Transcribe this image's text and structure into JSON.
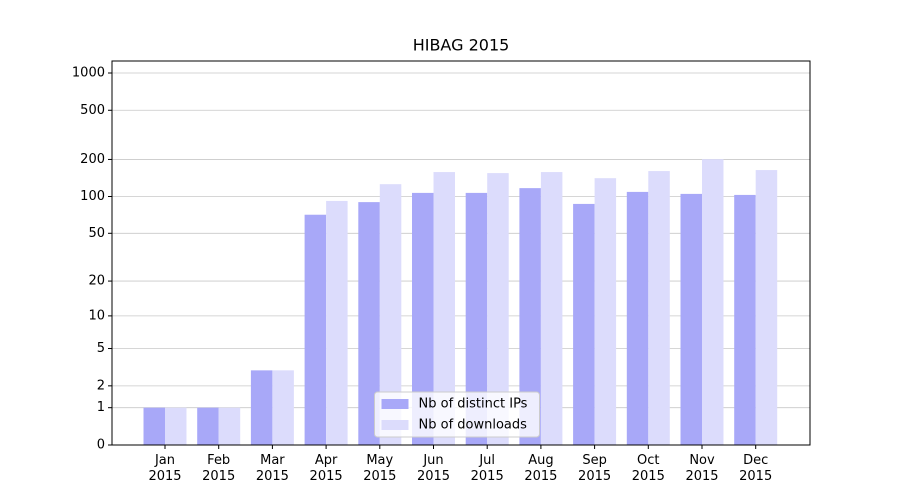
{
  "chart_data": {
    "type": "bar",
    "title": "HIBAG 2015",
    "categories": [
      "Jan\n2015",
      "Feb\n2015",
      "Mar\n2015",
      "Apr\n2015",
      "May\n2015",
      "Jun\n2015",
      "Jul\n2015",
      "Aug\n2015",
      "Sep\n2015",
      "Oct\n2015",
      "Nov\n2015",
      "Dec\n2015"
    ],
    "series": [
      {
        "name": "Nb of distinct IPs",
        "color": "#a8a8f8",
        "values": [
          1,
          1,
          3,
          71,
          90,
          107,
          107,
          117,
          87,
          109,
          105,
          103
        ]
      },
      {
        "name": "Nb of downloads",
        "color": "#dcdcfc",
        "values": [
          1,
          1,
          3,
          92,
          126,
          158,
          155,
          158,
          141,
          161,
          201,
          164
        ]
      }
    ],
    "yscale": "log1p",
    "ylim": [
      0,
      1250
    ],
    "yticks": [
      0,
      1,
      2,
      5,
      10,
      20,
      50,
      100,
      200,
      500,
      1000
    ],
    "grid": true,
    "legend": "lower center"
  }
}
